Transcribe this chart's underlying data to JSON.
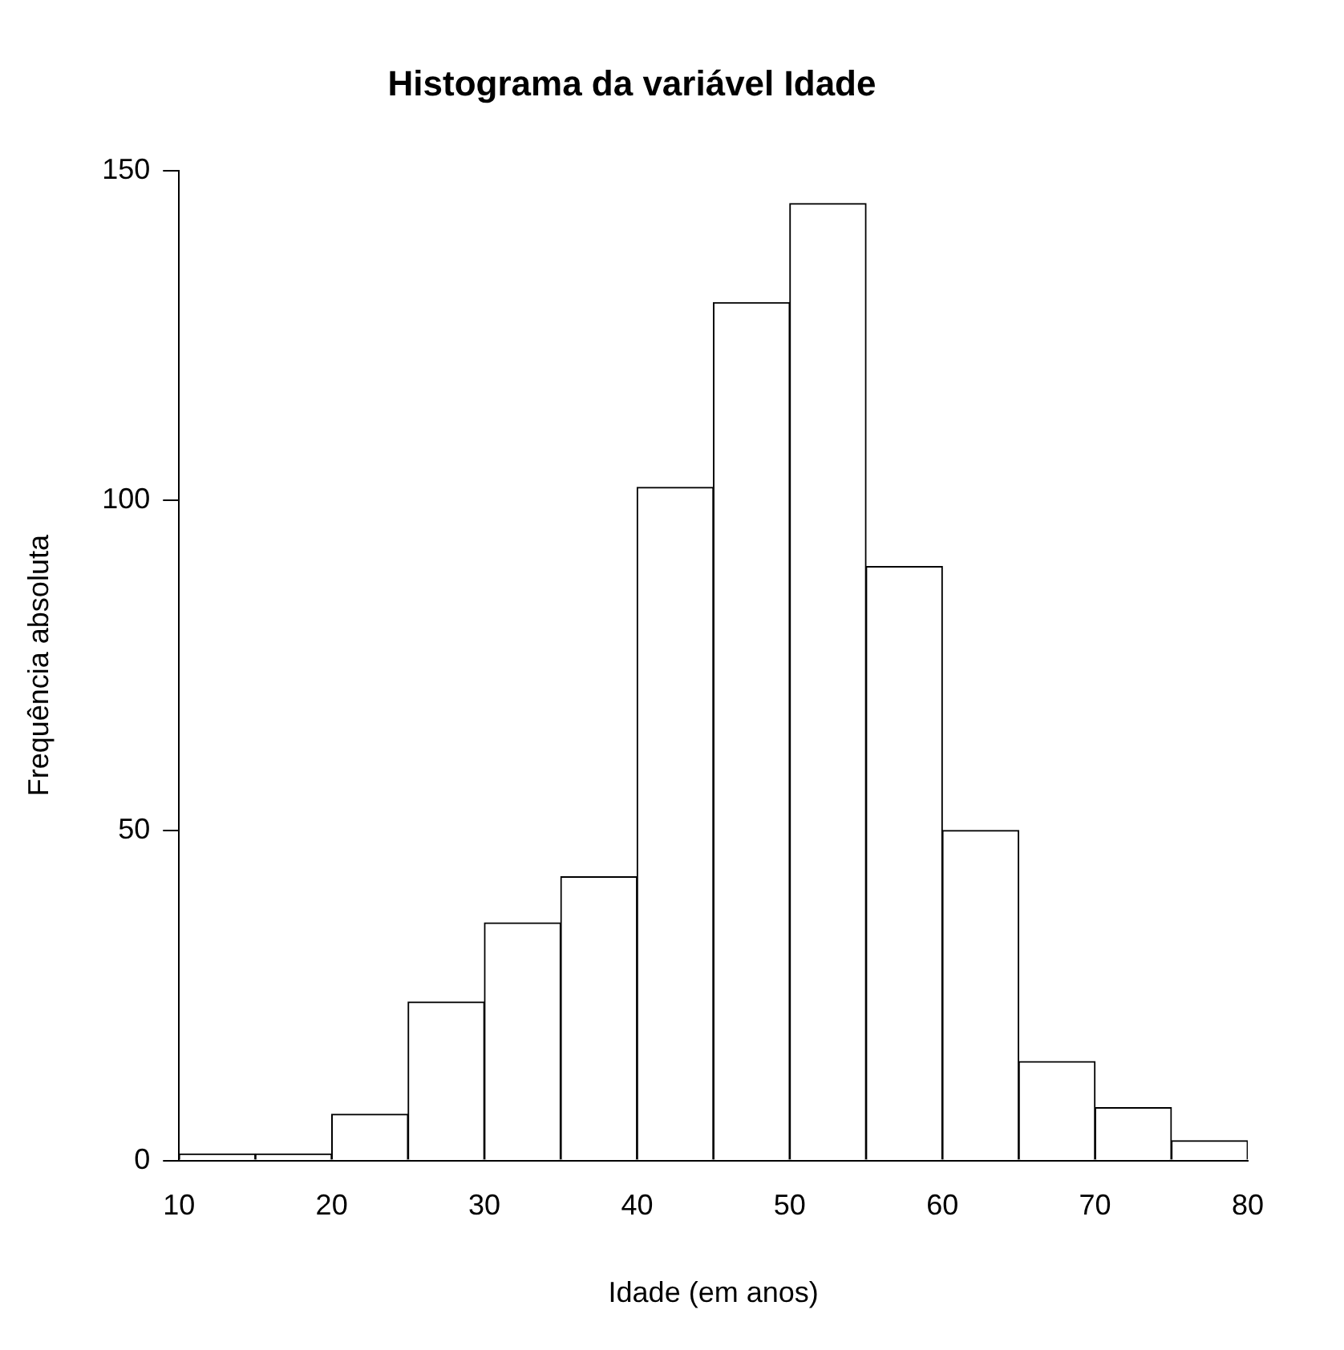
{
  "chart_data": {
    "type": "histogram",
    "title": "Histograma da variável Idade",
    "xlabel": "Idade (em anos)",
    "ylabel": "Frequência absoluta",
    "bins": [
      10,
      15,
      20,
      25,
      30,
      35,
      40,
      45,
      50,
      55,
      60,
      65,
      70,
      75,
      80
    ],
    "values": [
      1,
      1,
      7,
      24,
      36,
      43,
      102,
      130,
      145,
      90,
      50,
      15,
      8,
      3
    ],
    "color": "#ffffff",
    "xlim": [
      10,
      80
    ],
    "xticks": [
      10,
      20,
      30,
      40,
      50,
      60,
      70,
      80
    ],
    "ylim": [
      0,
      150
    ],
    "yticks": [
      0,
      50,
      100,
      150
    ],
    "grid": false,
    "legend": false
  }
}
